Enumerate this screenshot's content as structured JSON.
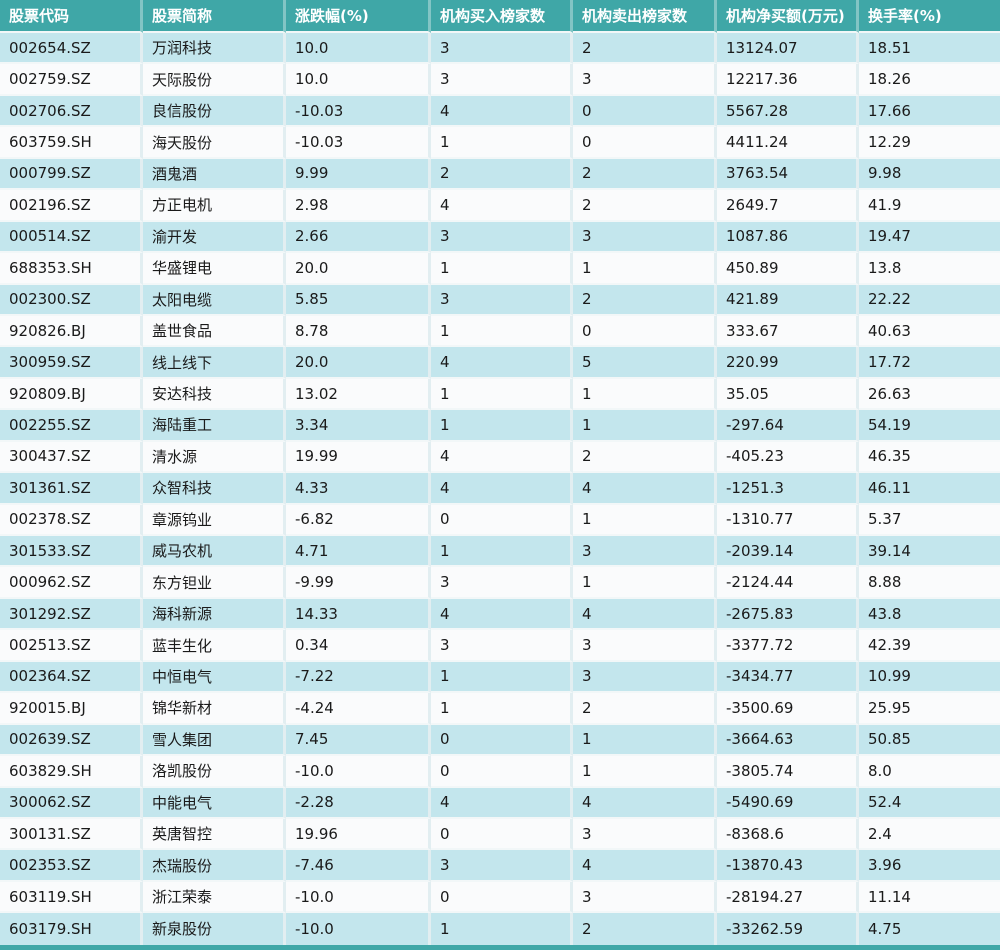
{
  "colors": {
    "header_bg": "#3fa7a7",
    "header_text": "#ffffff",
    "row_alt_bg": "#c3e6ed",
    "row_bg": "#fafbfc",
    "col_separator": "#e2eef1",
    "row_separator": "#f2f7f8",
    "text": "#1a1a1a"
  },
  "chart_data": {
    "type": "table",
    "title": "",
    "columns": [
      "股票代码",
      "股票简称",
      "涨跌幅(%)",
      "机构买入榜家数",
      "机构卖出榜家数",
      "机构净买额(万元)",
      "换手率(%)"
    ],
    "column_keys": [
      "code",
      "name",
      "change",
      "buy-count",
      "sell-count",
      "net-buy",
      "turnover"
    ],
    "rows": [
      [
        "002654.SZ",
        "万润科技",
        "10.0",
        "3",
        "2",
        "13124.07",
        "18.51"
      ],
      [
        "002759.SZ",
        "天际股份",
        "10.0",
        "3",
        "3",
        "12217.36",
        "18.26"
      ],
      [
        "002706.SZ",
        "良信股份",
        "-10.03",
        "4",
        "0",
        "5567.28",
        "17.66"
      ],
      [
        "603759.SH",
        "海天股份",
        "-10.03",
        "1",
        "0",
        "4411.24",
        "12.29"
      ],
      [
        "000799.SZ",
        "酒鬼酒",
        "9.99",
        "2",
        "2",
        "3763.54",
        "9.98"
      ],
      [
        "002196.SZ",
        "方正电机",
        "2.98",
        "4",
        "2",
        "2649.7",
        "41.9"
      ],
      [
        "000514.SZ",
        "渝开发",
        "2.66",
        "3",
        "3",
        "1087.86",
        "19.47"
      ],
      [
        "688353.SH",
        "华盛锂电",
        "20.0",
        "1",
        "1",
        "450.89",
        "13.8"
      ],
      [
        "002300.SZ",
        "太阳电缆",
        "5.85",
        "3",
        "2",
        "421.89",
        "22.22"
      ],
      [
        "920826.BJ",
        "盖世食品",
        "8.78",
        "1",
        "0",
        "333.67",
        "40.63"
      ],
      [
        "300959.SZ",
        "线上线下",
        "20.0",
        "4",
        "5",
        "220.99",
        "17.72"
      ],
      [
        "920809.BJ",
        "安达科技",
        "13.02",
        "1",
        "1",
        "35.05",
        "26.63"
      ],
      [
        "002255.SZ",
        "海陆重工",
        "3.34",
        "1",
        "1",
        "-297.64",
        "54.19"
      ],
      [
        "300437.SZ",
        "清水源",
        "19.99",
        "4",
        "2",
        "-405.23",
        "46.35"
      ],
      [
        "301361.SZ",
        "众智科技",
        "4.33",
        "4",
        "4",
        "-1251.3",
        "46.11"
      ],
      [
        "002378.SZ",
        "章源钨业",
        "-6.82",
        "0",
        "1",
        "-1310.77",
        "5.37"
      ],
      [
        "301533.SZ",
        "威马农机",
        "4.71",
        "1",
        "3",
        "-2039.14",
        "39.14"
      ],
      [
        "000962.SZ",
        "东方钽业",
        "-9.99",
        "3",
        "1",
        "-2124.44",
        "8.88"
      ],
      [
        "301292.SZ",
        "海科新源",
        "14.33",
        "4",
        "4",
        "-2675.83",
        "43.8"
      ],
      [
        "002513.SZ",
        "蓝丰生化",
        "0.34",
        "3",
        "3",
        "-3377.72",
        "42.39"
      ],
      [
        "002364.SZ",
        "中恒电气",
        "-7.22",
        "1",
        "3",
        "-3434.77",
        "10.99"
      ],
      [
        "920015.BJ",
        "锦华新材",
        "-4.24",
        "1",
        "2",
        "-3500.69",
        "25.95"
      ],
      [
        "002639.SZ",
        "雪人集团",
        "7.45",
        "0",
        "1",
        "-3664.63",
        "50.85"
      ],
      [
        "603829.SH",
        "洛凯股份",
        "-10.0",
        "0",
        "1",
        "-3805.74",
        "8.0"
      ],
      [
        "300062.SZ",
        "中能电气",
        "-2.28",
        "4",
        "4",
        "-5490.69",
        "52.4"
      ],
      [
        "300131.SZ",
        "英唐智控",
        "19.96",
        "0",
        "3",
        "-8368.6",
        "2.4"
      ],
      [
        "002353.SZ",
        "杰瑞股份",
        "-7.46",
        "3",
        "4",
        "-13870.43",
        "3.96"
      ],
      [
        "603119.SH",
        "浙江荣泰",
        "-10.0",
        "0",
        "3",
        "-28194.27",
        "11.14"
      ],
      [
        "603179.SH",
        "新泉股份",
        "-10.0",
        "1",
        "2",
        "-33262.59",
        "4.75"
      ]
    ],
    "layout": {
      "grid": "row and column separator lines",
      "alternating_rows": "odd rows tinted light blue starting with first data row",
      "header_style": "teal background, white bold text, left aligned"
    }
  }
}
